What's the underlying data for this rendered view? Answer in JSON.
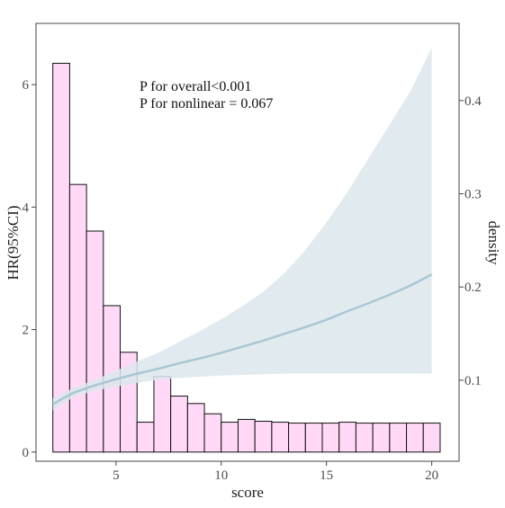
{
  "chart_data": {
    "type": "bar",
    "xlabel": "score",
    "ylabel_left": "HR(95%CI)",
    "ylabel_right": "density",
    "xlim": [
      1.2,
      21.3
    ],
    "ylim_left": [
      -0.15,
      7.0
    ],
    "ylim_right": [
      0.0131,
      0.4828
    ],
    "x_ticks": [
      5,
      10,
      15,
      20
    ],
    "y_ticks_left": [
      0,
      2,
      4,
      6
    ],
    "y_ticks_right": [
      0.1,
      0.2,
      0.3,
      0.4
    ],
    "y_tick_labels_right": [
      "0.1",
      "0.2",
      "0.3",
      "0.4"
    ],
    "annotations": [
      "P for overall<0.001",
      "P for nonlinear = 0.067"
    ],
    "grid": false,
    "histogram": {
      "bin_width": 0.8,
      "bin_starts": [
        2,
        2.8,
        3.6,
        4.4,
        5.2,
        6,
        6.8,
        7.6,
        8.4,
        9.2,
        10,
        10.8,
        11.6,
        12.4,
        13.2,
        14,
        14.8,
        15.6,
        16.4,
        17.2,
        18,
        18.8,
        19.6
      ],
      "density": [
        0.44,
        0.31,
        0.26,
        0.18,
        0.13,
        0.055,
        0.104,
        0.083,
        0.075,
        0.064,
        0.055,
        0.058,
        0.056,
        0.055,
        0.054,
        0.054,
        0.054,
        0.055,
        0.054,
        0.054,
        0.054,
        0.054,
        0.054
      ]
    },
    "hr_curve": {
      "x": [
        2,
        2.5,
        3,
        4,
        5,
        6,
        7,
        8,
        9,
        10,
        11,
        12,
        13,
        14,
        15,
        16,
        17,
        18,
        19,
        20
      ],
      "hr": [
        0.78,
        0.88,
        0.97,
        1.09,
        1.19,
        1.28,
        1.36,
        1.45,
        1.53,
        1.62,
        1.72,
        1.82,
        1.93,
        2.04,
        2.16,
        2.3,
        2.43,
        2.57,
        2.72,
        2.9
      ],
      "lower": [
        0.68,
        0.79,
        0.9,
        1.0,
        1.07,
        1.13,
        1.18,
        1.21,
        1.23,
        1.25,
        1.26,
        1.27,
        1.28,
        1.28,
        1.28,
        1.28,
        1.28,
        1.28,
        1.28,
        1.28
      ],
      "upper": [
        0.88,
        0.97,
        1.05,
        1.18,
        1.33,
        1.48,
        1.62,
        1.8,
        1.98,
        2.17,
        2.38,
        2.62,
        2.92,
        3.3,
        3.75,
        4.25,
        4.8,
        5.35,
        5.9,
        6.6
      ]
    }
  }
}
